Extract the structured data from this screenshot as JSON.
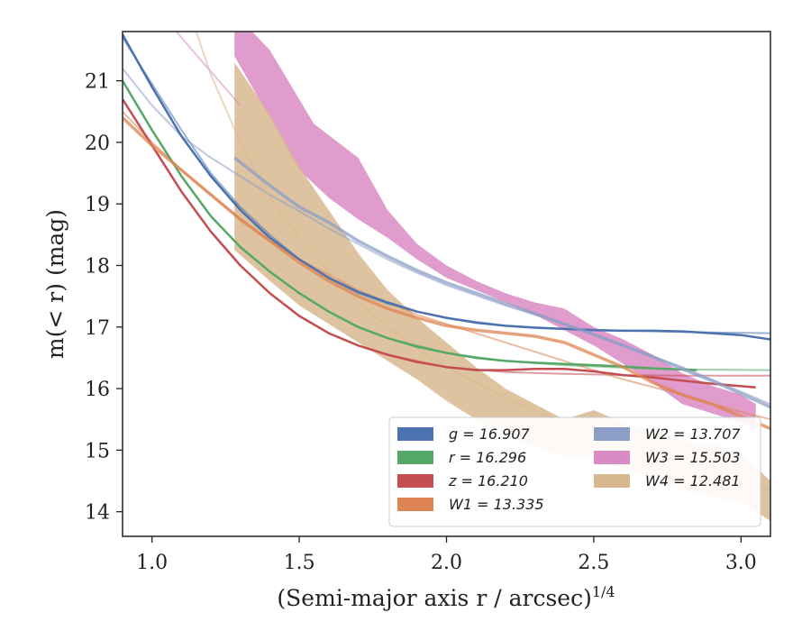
{
  "chart_data": {
    "type": "line",
    "xlabel": "(Semi-major axis r / arcsec)",
    "xlabel_sup": "1/4",
    "ylabel": "m(< r) (mag)",
    "xlim": [
      0.9,
      3.1
    ],
    "ylim": [
      21.8,
      13.6
    ],
    "y_inverted": true,
    "x_ticks": [
      "1.0",
      "1.5",
      "2.0",
      "2.5",
      "3.0"
    ],
    "y_ticks": [
      "14",
      "15",
      "16",
      "17",
      "18",
      "19",
      "20",
      "21"
    ],
    "grid": false,
    "legend_position": "lower-right",
    "legend_columns": 2,
    "series": [
      {
        "name": "g = 16.907",
        "color": "#4c72b0",
        "kind": "measured",
        "points": [
          [
            0.9,
            21.75
          ],
          [
            1.0,
            20.9
          ],
          [
            1.1,
            20.1
          ],
          [
            1.2,
            19.45
          ],
          [
            1.3,
            18.9
          ],
          [
            1.4,
            18.45
          ],
          [
            1.5,
            18.1
          ],
          [
            1.6,
            17.8
          ],
          [
            1.7,
            17.57
          ],
          [
            1.8,
            17.4
          ],
          [
            1.9,
            17.25
          ],
          [
            2.0,
            17.15
          ],
          [
            2.1,
            17.07
          ],
          [
            2.2,
            17.02
          ],
          [
            2.3,
            16.99
          ],
          [
            2.4,
            16.97
          ],
          [
            2.5,
            16.95
          ],
          [
            2.6,
            16.94
          ],
          [
            2.7,
            16.94
          ],
          [
            2.8,
            16.93
          ],
          [
            2.9,
            16.9
          ],
          [
            3.0,
            16.87
          ],
          [
            3.1,
            16.8
          ]
        ],
        "model": [
          [
            0.9,
            21.7
          ],
          [
            1.0,
            20.95
          ],
          [
            1.1,
            20.2
          ],
          [
            1.2,
            19.5
          ],
          [
            1.3,
            18.95
          ],
          [
            1.4,
            18.5
          ],
          [
            1.5,
            18.1
          ],
          [
            1.6,
            17.8
          ],
          [
            1.7,
            17.55
          ],
          [
            1.8,
            17.38
          ],
          [
            1.9,
            17.25
          ],
          [
            2.0,
            17.15
          ],
          [
            2.2,
            17.02
          ],
          [
            2.4,
            16.97
          ],
          [
            2.6,
            16.94
          ],
          [
            2.8,
            16.92
          ],
          [
            3.1,
            16.9
          ]
        ]
      },
      {
        "name": "r = 16.296",
        "color": "#55a868",
        "kind": "measured",
        "points": [
          [
            0.9,
            21.0
          ],
          [
            1.0,
            20.2
          ],
          [
            1.1,
            19.45
          ],
          [
            1.2,
            18.8
          ],
          [
            1.3,
            18.3
          ],
          [
            1.4,
            17.9
          ],
          [
            1.5,
            17.55
          ],
          [
            1.6,
            17.25
          ],
          [
            1.7,
            17.0
          ],
          [
            1.8,
            16.82
          ],
          [
            1.9,
            16.68
          ],
          [
            2.0,
            16.58
          ],
          [
            2.1,
            16.5
          ],
          [
            2.2,
            16.45
          ],
          [
            2.3,
            16.42
          ],
          [
            2.4,
            16.4
          ],
          [
            2.5,
            16.38
          ],
          [
            2.6,
            16.36
          ],
          [
            2.7,
            16.33
          ],
          [
            2.85,
            16.3
          ]
        ],
        "model": [
          [
            0.9,
            21.0
          ],
          [
            1.0,
            20.2
          ],
          [
            1.1,
            19.45
          ],
          [
            1.2,
            18.8
          ],
          [
            1.3,
            18.3
          ],
          [
            1.4,
            17.9
          ],
          [
            1.5,
            17.55
          ],
          [
            1.6,
            17.25
          ],
          [
            1.7,
            17.0
          ],
          [
            1.8,
            16.82
          ],
          [
            2.0,
            16.58
          ],
          [
            2.2,
            16.45
          ],
          [
            2.4,
            16.38
          ],
          [
            2.6,
            16.34
          ],
          [
            2.8,
            16.31
          ],
          [
            3.1,
            16.3
          ]
        ]
      },
      {
        "name": "z = 16.210",
        "color": "#c44e52",
        "kind": "measured",
        "points": [
          [
            0.9,
            20.7
          ],
          [
            1.0,
            19.95
          ],
          [
            1.1,
            19.2
          ],
          [
            1.2,
            18.55
          ],
          [
            1.3,
            18.0
          ],
          [
            1.4,
            17.55
          ],
          [
            1.5,
            17.18
          ],
          [
            1.6,
            16.9
          ],
          [
            1.7,
            16.7
          ],
          [
            1.8,
            16.55
          ],
          [
            1.9,
            16.43
          ],
          [
            2.0,
            16.35
          ],
          [
            2.1,
            16.3
          ],
          [
            2.2,
            16.3
          ],
          [
            2.3,
            16.32
          ],
          [
            2.4,
            16.32
          ],
          [
            2.5,
            16.28
          ],
          [
            2.6,
            16.22
          ],
          [
            2.7,
            16.18
          ],
          [
            2.8,
            16.13
          ],
          [
            2.9,
            16.08
          ],
          [
            3.05,
            16.02
          ]
        ],
        "model": [
          [
            0.9,
            20.7
          ],
          [
            1.0,
            19.95
          ],
          [
            1.1,
            19.2
          ],
          [
            1.2,
            18.55
          ],
          [
            1.3,
            18.0
          ],
          [
            1.4,
            17.55
          ],
          [
            1.5,
            17.18
          ],
          [
            1.6,
            16.9
          ],
          [
            1.7,
            16.7
          ],
          [
            1.8,
            16.55
          ],
          [
            2.0,
            16.35
          ],
          [
            2.2,
            16.27
          ],
          [
            2.4,
            16.24
          ],
          [
            2.6,
            16.22
          ],
          [
            2.8,
            16.21
          ],
          [
            3.1,
            16.21
          ]
        ]
      },
      {
        "name": "W1 = 13.335",
        "color": "#dd8452",
        "kind": "measured",
        "points": [
          [
            0.9,
            20.4
          ],
          [
            1.0,
            19.95
          ],
          [
            1.1,
            19.55
          ],
          [
            1.2,
            19.15
          ],
          [
            1.3,
            18.75
          ],
          [
            1.4,
            18.4
          ],
          [
            1.5,
            18.05
          ],
          [
            1.6,
            17.75
          ],
          [
            1.7,
            17.5
          ],
          [
            1.8,
            17.3
          ],
          [
            1.9,
            17.15
          ],
          [
            2.0,
            17.02
          ],
          [
            2.1,
            16.95
          ],
          [
            2.2,
            16.9
          ],
          [
            2.3,
            16.85
          ],
          [
            2.4,
            16.75
          ],
          [
            2.5,
            16.55
          ],
          [
            2.6,
            16.35
          ],
          [
            2.7,
            16.1
          ],
          [
            2.8,
            15.9
          ],
          [
            2.9,
            15.75
          ],
          [
            3.0,
            15.55
          ],
          [
            3.1,
            15.35
          ]
        ],
        "model": [
          [
            0.9,
            20.5
          ],
          [
            1.0,
            20.0
          ],
          [
            1.1,
            19.55
          ],
          [
            1.2,
            19.15
          ],
          [
            1.3,
            18.75
          ],
          [
            1.4,
            18.4
          ],
          [
            1.5,
            18.1
          ],
          [
            1.6,
            17.85
          ],
          [
            1.7,
            17.6
          ],
          [
            1.8,
            17.4
          ],
          [
            1.9,
            17.2
          ],
          [
            2.0,
            17.05
          ],
          [
            2.2,
            16.75
          ],
          [
            2.4,
            16.45
          ],
          [
            2.6,
            16.15
          ],
          [
            2.8,
            15.9
          ],
          [
            3.0,
            15.62
          ],
          [
            3.1,
            15.5
          ]
        ]
      },
      {
        "name": "W2 = 13.707",
        "color": "#8c9dc7",
        "kind": "measured",
        "points": [
          [
            1.28,
            19.75
          ],
          [
            1.4,
            19.3
          ],
          [
            1.5,
            18.95
          ],
          [
            1.6,
            18.7
          ],
          [
            1.7,
            18.4
          ],
          [
            1.8,
            18.15
          ],
          [
            1.9,
            17.92
          ],
          [
            2.0,
            17.72
          ],
          [
            2.1,
            17.55
          ],
          [
            2.2,
            17.38
          ],
          [
            2.3,
            17.22
          ],
          [
            2.4,
            17.05
          ],
          [
            2.5,
            16.88
          ],
          [
            2.6,
            16.7
          ],
          [
            2.7,
            16.52
          ],
          [
            2.8,
            16.32
          ],
          [
            2.9,
            16.13
          ],
          [
            3.0,
            15.92
          ],
          [
            3.1,
            15.7
          ]
        ],
        "model": [
          [
            0.9,
            21.2
          ],
          [
            1.0,
            20.6
          ],
          [
            1.1,
            20.1
          ],
          [
            1.2,
            19.75
          ],
          [
            1.3,
            19.45
          ],
          [
            1.4,
            19.15
          ],
          [
            1.5,
            18.88
          ],
          [
            1.6,
            18.6
          ],
          [
            1.7,
            18.35
          ],
          [
            1.8,
            18.1
          ],
          [
            1.9,
            17.88
          ],
          [
            2.0,
            17.68
          ],
          [
            2.2,
            17.35
          ],
          [
            2.4,
            17.05
          ],
          [
            2.6,
            16.7
          ],
          [
            2.8,
            16.35
          ],
          [
            3.0,
            15.95
          ],
          [
            3.1,
            15.75
          ]
        ]
      },
      {
        "name": "W3 = 15.503",
        "color": "#da8bc3",
        "kind": "band",
        "upper": [
          [
            1.28,
            21.4
          ],
          [
            1.4,
            20.4
          ],
          [
            1.5,
            19.55
          ],
          [
            1.6,
            19.1
          ],
          [
            1.7,
            18.75
          ],
          [
            1.8,
            18.45
          ],
          [
            1.9,
            18.1
          ],
          [
            2.0,
            17.8
          ],
          [
            2.1,
            17.6
          ],
          [
            2.2,
            17.4
          ],
          [
            2.3,
            17.2
          ],
          [
            2.4,
            16.95
          ],
          [
            2.5,
            16.7
          ],
          [
            2.6,
            16.4
          ],
          [
            2.7,
            16.1
          ],
          [
            2.8,
            15.75
          ],
          [
            2.9,
            15.6
          ],
          [
            3.0,
            15.45
          ],
          [
            3.05,
            15.3
          ]
        ],
        "lower": [
          [
            1.28,
            22.1
          ],
          [
            1.4,
            21.5
          ],
          [
            1.55,
            20.3
          ],
          [
            1.7,
            19.75
          ],
          [
            1.8,
            18.9
          ],
          [
            1.9,
            18.35
          ],
          [
            2.0,
            18.0
          ],
          [
            2.1,
            17.75
          ],
          [
            2.2,
            17.55
          ],
          [
            2.3,
            17.4
          ],
          [
            2.4,
            17.3
          ],
          [
            2.5,
            17.0
          ],
          [
            2.6,
            16.8
          ],
          [
            2.7,
            16.55
          ],
          [
            2.8,
            16.25
          ],
          [
            2.9,
            16.05
          ],
          [
            3.0,
            15.9
          ],
          [
            3.05,
            15.75
          ]
        ],
        "model": [
          [
            1.05,
            22.0
          ],
          [
            1.1,
            21.7
          ],
          [
            1.2,
            21.15
          ],
          [
            1.3,
            20.6
          ]
        ]
      },
      {
        "name": "W4 = 12.481",
        "color": "#d8b98f",
        "kind": "band",
        "upper": [
          [
            1.28,
            18.25
          ],
          [
            1.4,
            17.75
          ],
          [
            1.5,
            17.35
          ],
          [
            1.6,
            17.05
          ],
          [
            1.7,
            16.75
          ],
          [
            1.8,
            16.45
          ],
          [
            1.9,
            16.15
          ],
          [
            2.0,
            15.8
          ],
          [
            2.1,
            15.5
          ],
          [
            2.2,
            15.25
          ],
          [
            2.3,
            15.05
          ],
          [
            2.4,
            14.9
          ],
          [
            2.5,
            14.85
          ],
          [
            2.6,
            14.7
          ],
          [
            2.7,
            14.55
          ],
          [
            2.8,
            14.35
          ],
          [
            2.9,
            14.25
          ],
          [
            3.0,
            14.15
          ],
          [
            3.1,
            13.85
          ]
        ],
        "lower": [
          [
            1.28,
            21.3
          ],
          [
            1.4,
            20.45
          ],
          [
            1.5,
            19.6
          ],
          [
            1.6,
            18.9
          ],
          [
            1.7,
            18.2
          ],
          [
            1.8,
            17.6
          ],
          [
            1.9,
            17.15
          ],
          [
            2.0,
            16.75
          ],
          [
            2.1,
            16.35
          ],
          [
            2.2,
            16.0
          ],
          [
            2.3,
            15.75
          ],
          [
            2.4,
            15.5
          ],
          [
            2.5,
            15.65
          ],
          [
            2.6,
            15.45
          ],
          [
            2.7,
            15.3
          ],
          [
            2.8,
            15.15
          ],
          [
            2.9,
            15.1
          ],
          [
            3.0,
            14.95
          ],
          [
            3.1,
            14.5
          ]
        ],
        "model": [
          [
            1.15,
            21.8
          ],
          [
            1.2,
            21.1
          ],
          [
            1.3,
            20.0
          ],
          [
            1.4,
            19.1
          ],
          [
            1.5,
            18.45
          ],
          [
            1.6,
            17.9
          ],
          [
            1.7,
            17.4
          ],
          [
            1.8,
            17.0
          ],
          [
            1.9,
            16.65
          ],
          [
            2.0,
            16.35
          ],
          [
            2.2,
            15.85
          ],
          [
            2.4,
            15.45
          ],
          [
            2.6,
            15.1
          ],
          [
            2.8,
            14.8
          ],
          [
            3.0,
            14.5
          ],
          [
            3.1,
            14.35
          ]
        ]
      }
    ]
  }
}
